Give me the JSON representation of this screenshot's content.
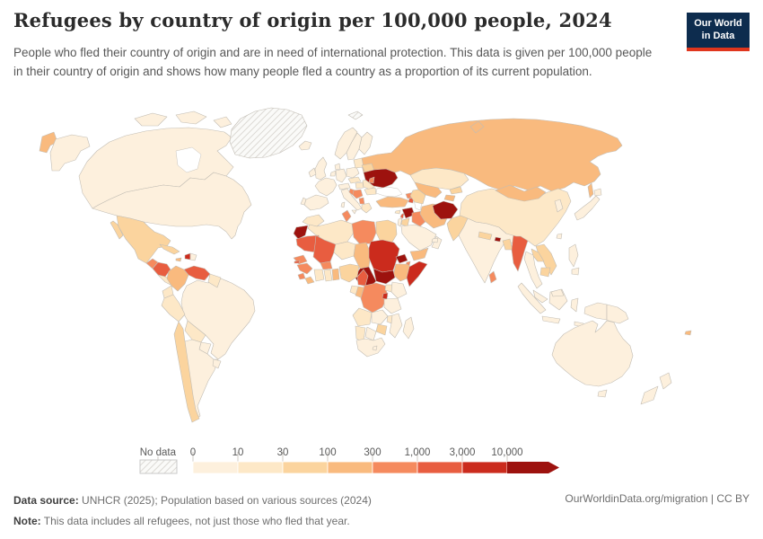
{
  "header": {
    "title": "Refugees by country of origin per 100,000 people, 2024",
    "subtitle": "People who fled their country of origin and are in need of international protection. This data is given per 100,000 people in their country of origin and shows how many people fled a country as a proportion of its current population.",
    "logo": {
      "line1": "Our World",
      "line2": "in Data"
    }
  },
  "footer": {
    "source_label": "Data source:",
    "source_text": " UNHCR (2025); Population based on various sources (2024)",
    "note_label": "Note:",
    "note_text": " This data includes all refugees, not just those who fled that year.",
    "link_text": "OurWorldinData.org/migration | CC BY"
  },
  "colors": {
    "logo_bg": "#0d2c4e",
    "logo_bar": "#e0361d",
    "border": "#c2bdb4",
    "ocean": "#ffffff"
  },
  "chart_data": {
    "type": "heatmap",
    "subtype": "choropleth-world-map",
    "title": "Refugees by country of origin per 100,000 people",
    "year": "2024",
    "legend": {
      "no_data_label": "No data",
      "tick_labels": [
        "0",
        "10",
        "30",
        "100",
        "300",
        "1,000",
        "3,000",
        "10,000"
      ],
      "bin_ranges": [
        "0-10",
        "10-30",
        "30-100",
        "100-300",
        "300-1,000",
        "1,000-3,000",
        "3,000-10,000",
        "10,000+"
      ],
      "bin_colors": [
        "#fdf0dd",
        "#fde8c7",
        "#fbd49e",
        "#f9ba7e",
        "#f58a5e",
        "#e85d40",
        "#cb2b1d",
        "#9d120e"
      ],
      "no_data_pattern": "diagonal-hatch",
      "scale": "log-like thresholds, arrow for values above 10,000"
    },
    "country_bins": {
      "greenland": 0,
      "svalbard": 0,
      "canada": 1,
      "united-states": 1,
      "mexico": 3,
      "guatemala": 5,
      "honduras": 6,
      "nicaragua": 6,
      "costa-rica": 2,
      "panama": 2,
      "cuba": 3,
      "jamaica": 4,
      "haiti": 7,
      "dominican-republic": 1,
      "colombia": 4,
      "venezuela": 6,
      "guyana": 2,
      "ecuador": 2,
      "peru": 2,
      "brazil": 1,
      "bolivia": 2,
      "paraguay": 1,
      "chile": 3,
      "argentina": 1,
      "uruguay": 1,
      "iceland": 1,
      "ireland": 1,
      "united-kingdom": 1,
      "norway": 1,
      "sweden": 1,
      "finland": 1,
      "denmark": 1,
      "france": 1,
      "spain": 1,
      "portugal": 1,
      "germany": 1,
      "netherlands": 1,
      "poland": 1,
      "czechia": 2,
      "austria": 1,
      "hungary": 2,
      "italy": 1,
      "croatia": 5,
      "serbia": 5,
      "albania": 5,
      "greece": 2,
      "romania": 2,
      "bulgaria": 2,
      "baltic-states": 2,
      "belarus": 3,
      "ukraine": 8,
      "moldova": 5,
      "russia": 4,
      "turkey": 4,
      "cyprus": 2,
      "georgia": 5,
      "armenia": 6,
      "azerbaijan": 7,
      "syria": 8,
      "lebanon": 6,
      "israel": 1,
      "jordan": 3,
      "iraq": 5,
      "saudi-arabia": 1,
      "yemen": 4,
      "oman": 1,
      "united-arab-emirates": 1,
      "iran": 4,
      "kazakhstan": 2,
      "uzbekistan": 4,
      "turkmenistan": 3,
      "kyrgyzstan": 3,
      "tajikistan": 4,
      "afghanistan": 8,
      "pakistan": 3,
      "india": 1,
      "nepal": 3,
      "bhutan": 8,
      "bangladesh": 3,
      "sri-lanka": 5,
      "myanmar": 6,
      "mongolia": 4,
      "china": 2,
      "south-korea": 1,
      "japan": 1,
      "taiwan": 1,
      "laos": 3,
      "vietnam": 3,
      "thailand": 1,
      "cambodia": 3,
      "malaysia": 1,
      "indonesia": 1,
      "philippines": 1,
      "timor-leste": 1,
      "papua-new-guinea": 1,
      "fiji": 4,
      "australia": 1,
      "new-zealand": 1,
      "morocco": 2,
      "western-sahara": 8,
      "algeria": 2,
      "tunisia": 5,
      "libya": 5,
      "egypt": 3,
      "mauritania": 6,
      "mali": 6,
      "senegal": 5,
      "gambia": 6,
      "guinea": 5,
      "sierra-leone": 5,
      "liberia": 4,
      "cote-divoire": 2,
      "ghana": 2,
      "togo-benin": 4,
      "burkina-faso": 5,
      "niger": 2,
      "nigeria": 3,
      "chad": 4,
      "sudan": 7,
      "eritrea": 8,
      "djibouti": 5,
      "ethiopia": 4,
      "somalia": 7,
      "south-sudan": 8,
      "central-african-republic": 8,
      "cameroon": 6,
      "gabon": 2,
      "congo": 4,
      "dr-congo": 5,
      "uganda": 2,
      "kenya": 1,
      "rwanda": 7,
      "burundi": 7,
      "tanzania": 1,
      "angola": 2,
      "zambia": 1,
      "malawi": 2,
      "mozambique": 1,
      "zimbabwe": 3,
      "botswana": 1,
      "namibia": 2,
      "south-africa": 1,
      "lesotho": 1,
      "madagascar": 1
    }
  }
}
